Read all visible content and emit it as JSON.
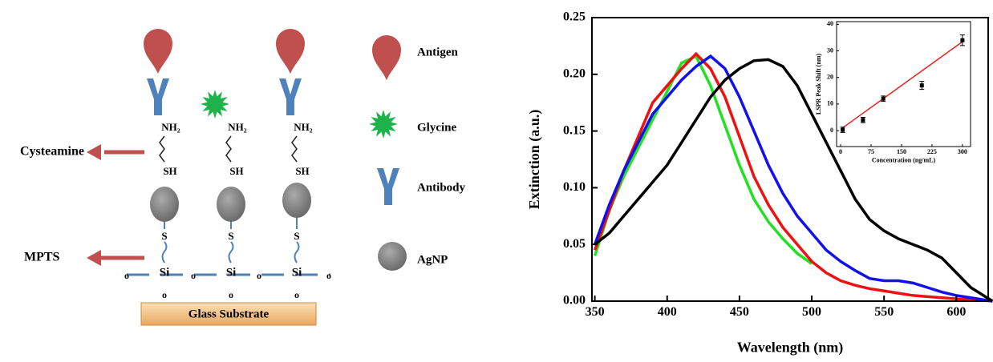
{
  "diagram": {
    "legend": [
      "Antigen",
      "Glycine",
      "Antibody",
      "AgNP"
    ],
    "callouts": [
      "Cysteamine",
      "MPTS"
    ],
    "substrate": "Glass Substrate",
    "columns": [
      {
        "amine": "NH₂",
        "thiol": "SH",
        "sulfur": "S",
        "silicon": "Si",
        "oxygen_left": "o",
        "oxygen_below": "o"
      },
      {
        "amine": "NH₂",
        "thiol": "SH",
        "sulfur": "S",
        "silicon": "Si",
        "oxygen_left": "o",
        "oxygen_below": "o"
      },
      {
        "amine": "NH₂",
        "thiol": "SH",
        "sulfur": "S",
        "silicon": "Si",
        "oxygen_left": "o",
        "oxygen_below": "o"
      }
    ],
    "oxygen_right": "o"
  },
  "chart_data": [
    {
      "type": "line",
      "xlabel": "Wavelength (nm)",
      "ylabel": "Extinction (a.u.)",
      "x": [
        350,
        360,
        370,
        380,
        390,
        400,
        410,
        420,
        430,
        440,
        450,
        460,
        470,
        480,
        490,
        500,
        510,
        520,
        530,
        540,
        550,
        560,
        570,
        580,
        590,
        600,
        610,
        620,
        625
      ],
      "series": [
        {
          "color": "#22e022",
          "values": [
            0.04,
            0.08,
            0.11,
            0.135,
            0.16,
            0.185,
            0.21,
            0.216,
            0.19,
            0.155,
            0.12,
            0.09,
            0.07,
            0.055,
            0.042,
            0.033,
            null,
            null,
            null,
            null,
            null,
            null,
            null,
            null,
            null,
            null,
            null,
            null,
            null
          ]
        },
        {
          "color": "#ee1111",
          "values": [
            0.045,
            0.08,
            0.115,
            0.145,
            0.175,
            0.19,
            0.205,
            0.218,
            0.205,
            0.18,
            0.145,
            0.11,
            0.085,
            0.065,
            0.05,
            0.035,
            0.025,
            0.018,
            0.014,
            0.011,
            0.009,
            0.007,
            0.005,
            0.004,
            0.003,
            0.002,
            0.001,
            0.0005,
            0
          ]
        },
        {
          "color": "#1111ee",
          "values": [
            0.05,
            0.085,
            0.115,
            0.14,
            0.165,
            0.18,
            0.195,
            0.207,
            0.216,
            0.205,
            0.18,
            0.15,
            0.12,
            0.095,
            0.075,
            0.06,
            0.045,
            0.035,
            0.027,
            0.02,
            0.018,
            0.018,
            0.016,
            0.012,
            0.008,
            0.005,
            0.003,
            0.001,
            0
          ]
        },
        {
          "color": "#000000",
          "values": [
            0.05,
            0.06,
            0.075,
            0.09,
            0.105,
            0.12,
            0.14,
            0.16,
            0.18,
            0.195,
            0.205,
            0.212,
            0.213,
            0.207,
            0.19,
            0.165,
            0.14,
            0.115,
            0.09,
            0.072,
            0.062,
            0.055,
            0.05,
            0.045,
            0.038,
            0.025,
            0.012,
            0.004,
            0
          ]
        }
      ],
      "xlim": [
        348,
        622
      ],
      "xticks": [
        350,
        400,
        450,
        500,
        550,
        600
      ],
      "ylim": [
        0,
        0.25
      ],
      "yticks": [
        {
          "value": 0,
          "label": "0.00"
        },
        0.05,
        {
          "value": 0.1,
          "label": "0.10"
        },
        0.15,
        {
          "value": 0.2,
          "label": "0.20"
        },
        0.25
      ]
    },
    {
      "type": "scatter",
      "xlabel": "Concentration (ng/mL)",
      "ylabel": "LSPR Peak Shift (nm)",
      "x": [
        5,
        55,
        105,
        200,
        300
      ],
      "values": [
        0.3,
        4,
        12,
        17,
        34
      ],
      "errors": [
        1,
        1,
        1,
        1.5,
        2
      ],
      "color": "#000000",
      "fit": {
        "x": [
          0,
          305
        ],
        "y": [
          0.5,
          34
        ],
        "color": "#e8231d"
      },
      "xlim": [
        -10,
        320
      ],
      "xticks": [
        0,
        75,
        150,
        225,
        300
      ],
      "ylim": [
        -6,
        41
      ],
      "yticks": [
        0,
        10,
        20,
        30,
        40
      ]
    }
  ]
}
